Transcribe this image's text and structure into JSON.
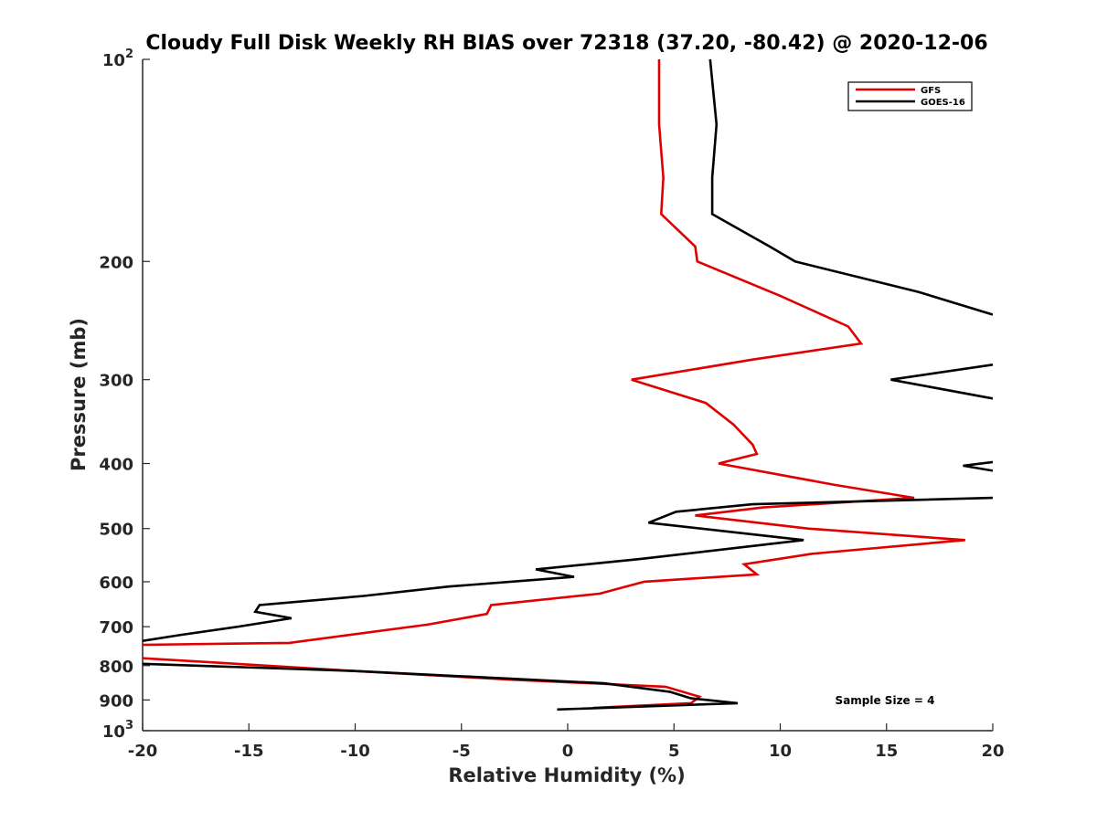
{
  "chart_data": {
    "type": "line",
    "title": "Cloudy Full Disk Weekly RH BIAS over 72318 (37.20, -80.42) @ 2020-12-06",
    "xlabel": "Relative Humidity (%)",
    "ylabel": "Pressure (mb)",
    "xlim": [
      -20,
      20
    ],
    "ylim": [
      100,
      1000
    ],
    "yscale": "log",
    "y_reversed": true,
    "xticks": [
      -20,
      -15,
      -10,
      -5,
      0,
      5,
      10,
      15,
      20
    ],
    "yticks": [
      {
        "value": 100,
        "base": "10",
        "exp": "2"
      },
      {
        "value": 200,
        "label": "200"
      },
      {
        "value": 300,
        "label": "300"
      },
      {
        "value": 400,
        "label": "400"
      },
      {
        "value": 500,
        "label": "500"
      },
      {
        "value": 600,
        "label": "600"
      },
      {
        "value": 700,
        "label": "700"
      },
      {
        "value": 800,
        "label": "800"
      },
      {
        "value": 900,
        "label": "900"
      },
      {
        "value": 1000,
        "base": "10",
        "exp": "3"
      }
    ],
    "legend_position": "top-right",
    "annotation": "Sample Size = 4",
    "series": [
      {
        "name": "GFS",
        "color": "#e00000",
        "points": [
          [
            4.3,
            100
          ],
          [
            4.3,
            125
          ],
          [
            4.5,
            150
          ],
          [
            4.4,
            170
          ],
          [
            6.0,
            190
          ],
          [
            6.1,
            200
          ],
          [
            10.0,
            225
          ],
          [
            13.2,
            250
          ],
          [
            13.8,
            265
          ],
          [
            8.7,
            280
          ],
          [
            3.0,
            300
          ],
          [
            6.5,
            325
          ],
          [
            7.8,
            350
          ],
          [
            8.7,
            375
          ],
          [
            8.9,
            387
          ],
          [
            7.1,
            400
          ],
          [
            12.5,
            430
          ],
          [
            16.3,
            450
          ],
          [
            9.2,
            465
          ],
          [
            6.0,
            478
          ],
          [
            11.3,
            500
          ],
          [
            18.7,
            520
          ],
          [
            11.5,
            545
          ],
          [
            8.3,
            565
          ],
          [
            8.9,
            585
          ],
          [
            3.6,
            600
          ],
          [
            1.5,
            625
          ],
          [
            -3.6,
            650
          ],
          [
            -3.8,
            670
          ],
          [
            -6.6,
            695
          ],
          [
            -13.1,
            740
          ],
          [
            -20,
            745
          ],
          [
            null,
            null
          ],
          [
            -20,
            780
          ],
          [
            -15.6,
            795
          ],
          [
            -10,
            815
          ],
          [
            -2.5,
            840
          ],
          [
            4.6,
            860
          ],
          [
            6.2,
            890
          ],
          [
            5.8,
            910
          ],
          [
            1.2,
            925
          ]
        ]
      },
      {
        "name": "GOES-16",
        "color": "#000000",
        "points": [
          [
            6.7,
            100
          ],
          [
            7.0,
            125
          ],
          [
            6.8,
            150
          ],
          [
            6.8,
            170
          ],
          [
            9.5,
            190
          ],
          [
            10.7,
            200
          ],
          [
            16.5,
            222
          ],
          [
            20,
            240
          ],
          [
            null,
            null
          ],
          [
            20,
            285
          ],
          [
            15.2,
            300
          ],
          [
            20,
            320
          ],
          [
            null,
            null
          ],
          [
            20,
            398
          ],
          [
            18.6,
            403
          ],
          [
            20,
            410
          ],
          [
            null,
            null
          ],
          [
            20,
            450
          ],
          [
            8.7,
            460
          ],
          [
            5.1,
            472
          ],
          [
            3.8,
            490
          ],
          [
            11.1,
            520
          ],
          [
            3.4,
            555
          ],
          [
            -1.5,
            575
          ],
          [
            0.3,
            590
          ],
          [
            -5.6,
            610
          ],
          [
            -9.6,
            630
          ],
          [
            -14.5,
            650
          ],
          [
            -14.7,
            665
          ],
          [
            -13.0,
            680
          ],
          [
            -15.5,
            700
          ],
          [
            -18.2,
            720
          ],
          [
            -20,
            735
          ],
          [
            null,
            null
          ],
          [
            -20,
            795
          ],
          [
            -10,
            815
          ],
          [
            1.7,
            850
          ],
          [
            4.8,
            875
          ],
          [
            5.8,
            895
          ],
          [
            8.0,
            910
          ],
          [
            -0.5,
            930
          ]
        ]
      }
    ]
  }
}
